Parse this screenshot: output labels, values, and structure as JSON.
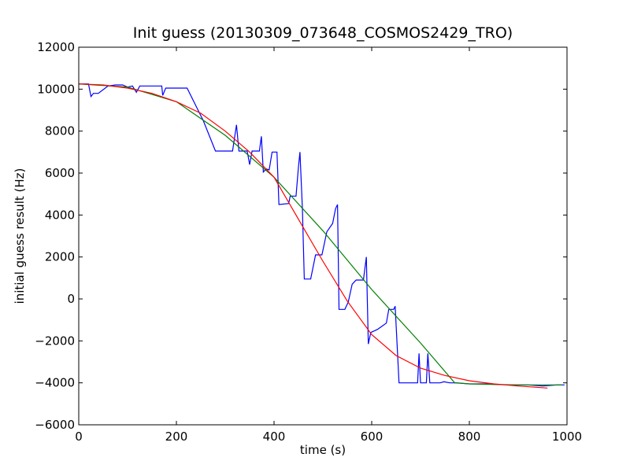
{
  "chart_data": {
    "type": "line",
    "title": "Init guess (20130309_073648_COSMOS2429_TRO)",
    "xlabel": "time (s)",
    "ylabel": "initial guess result (Hz)",
    "xlim": [
      0,
      1000
    ],
    "ylim": [
      -6000,
      12000
    ],
    "x_ticks": [
      0,
      200,
      400,
      600,
      800,
      1000
    ],
    "y_ticks": [
      -6000,
      -4000,
      -2000,
      0,
      2000,
      4000,
      6000,
      8000,
      10000,
      12000
    ],
    "grid": false,
    "legend": "none",
    "series": [
      {
        "color": "#0000ff",
        "points": [
          [
            0,
            10250
          ],
          [
            20,
            10250
          ],
          [
            25,
            9650
          ],
          [
            30,
            9800
          ],
          [
            40,
            9800
          ],
          [
            60,
            10150
          ],
          [
            75,
            10200
          ],
          [
            90,
            10200
          ],
          [
            100,
            10100
          ],
          [
            110,
            10150
          ],
          [
            118,
            9850
          ],
          [
            125,
            10150
          ],
          [
            170,
            10150
          ],
          [
            172,
            9700
          ],
          [
            178,
            10050
          ],
          [
            222,
            10050
          ],
          [
            255,
            8500
          ],
          [
            280,
            7050
          ],
          [
            315,
            7050
          ],
          [
            323,
            8300
          ],
          [
            328,
            7050
          ],
          [
            345,
            7050
          ],
          [
            350,
            6400
          ],
          [
            355,
            7050
          ],
          [
            370,
            7050
          ],
          [
            374,
            7750
          ],
          [
            378,
            6050
          ],
          [
            384,
            6200
          ],
          [
            390,
            6150
          ],
          [
            396,
            7000
          ],
          [
            406,
            7000
          ],
          [
            410,
            4500
          ],
          [
            430,
            4550
          ],
          [
            433,
            4900
          ],
          [
            445,
            4900
          ],
          [
            450,
            6300
          ],
          [
            453,
            7000
          ],
          [
            458,
            4300
          ],
          [
            462,
            950
          ],
          [
            475,
            950
          ],
          [
            485,
            2100
          ],
          [
            498,
            2100
          ],
          [
            508,
            3200
          ],
          [
            520,
            3600
          ],
          [
            526,
            4300
          ],
          [
            530,
            4500
          ],
          [
            533,
            -500
          ],
          [
            545,
            -500
          ],
          [
            552,
            -150
          ],
          [
            560,
            700
          ],
          [
            568,
            900
          ],
          [
            583,
            900
          ],
          [
            589,
            2000
          ],
          [
            593,
            -2150
          ],
          [
            598,
            -1600
          ],
          [
            612,
            -1450
          ],
          [
            618,
            -1350
          ],
          [
            630,
            -1150
          ],
          [
            635,
            -500
          ],
          [
            645,
            -500
          ],
          [
            648,
            -350
          ],
          [
            656,
            -4000
          ],
          [
            685,
            -4000
          ],
          [
            694,
            -4000
          ],
          [
            697,
            -2600
          ],
          [
            700,
            -4000
          ],
          [
            712,
            -4000
          ],
          [
            715,
            -2600
          ],
          [
            719,
            -4000
          ],
          [
            740,
            -4000
          ],
          [
            748,
            -3950
          ],
          [
            760,
            -4000
          ],
          [
            775,
            -4000
          ],
          [
            800,
            -4050
          ],
          [
            830,
            -4050
          ],
          [
            880,
            -4100
          ],
          [
            920,
            -4100
          ],
          [
            950,
            -4150
          ],
          [
            980,
            -4100
          ],
          [
            995,
            -4100
          ]
        ]
      },
      {
        "color": "#008000",
        "points": [
          [
            0,
            10250
          ],
          [
            100,
            10100
          ],
          [
            200,
            9400
          ],
          [
            300,
            7800
          ],
          [
            400,
            5800
          ],
          [
            500,
            3250
          ],
          [
            600,
            450
          ],
          [
            700,
            -2100
          ],
          [
            770,
            -4000
          ],
          [
            800,
            -4050
          ],
          [
            900,
            -4100
          ],
          [
            990,
            -4100
          ]
        ]
      },
      {
        "color": "#ff0000",
        "points": [
          [
            0,
            10250
          ],
          [
            50,
            10200
          ],
          [
            100,
            10050
          ],
          [
            150,
            9800
          ],
          [
            200,
            9400
          ],
          [
            250,
            8850
          ],
          [
            300,
            8000
          ],
          [
            350,
            7000
          ],
          [
            400,
            5800
          ],
          [
            450,
            3800
          ],
          [
            500,
            1800
          ],
          [
            550,
            -100
          ],
          [
            600,
            -1700
          ],
          [
            650,
            -2700
          ],
          [
            700,
            -3300
          ],
          [
            750,
            -3650
          ],
          [
            800,
            -3900
          ],
          [
            850,
            -4050
          ],
          [
            900,
            -4150
          ],
          [
            960,
            -4250
          ]
        ]
      }
    ]
  }
}
